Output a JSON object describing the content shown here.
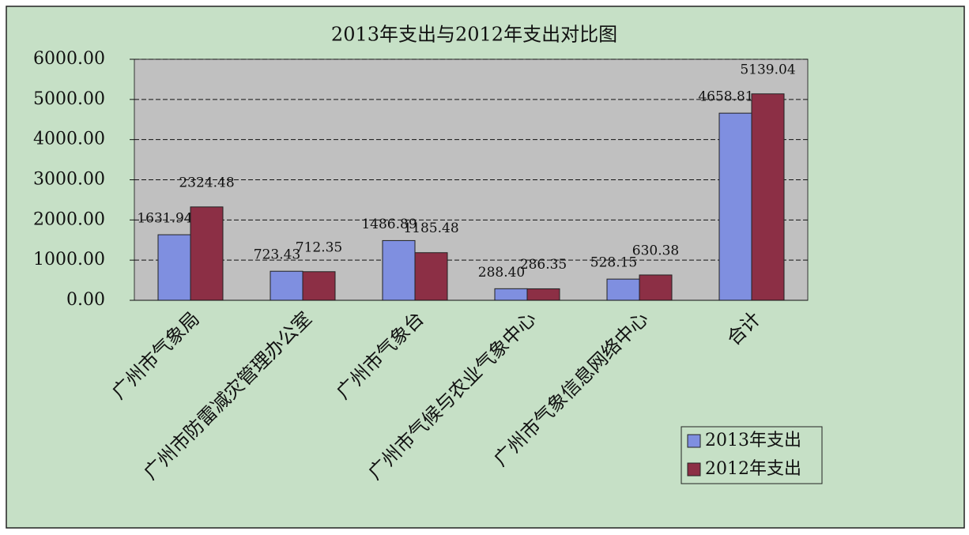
{
  "chart_data": {
    "type": "bar",
    "title": "2013年支出与2012年支出对比图",
    "categories": [
      "广州市气象局",
      "广州市防雷减灾管理办公室",
      "广州市气象台",
      "广州市气候与农业气象中心",
      "广州市气象信息网络中心",
      "合计"
    ],
    "series": [
      {
        "name": "2013年支出",
        "color": "#7f8fe0",
        "values": [
          1631.94,
          723.43,
          1486.89,
          288.4,
          528.15,
          4658.81
        ],
        "value_labels": [
          "1631.94",
          "723.43",
          "1486.89",
          "288.40",
          "528.15",
          "4658.81"
        ]
      },
      {
        "name": "2012年支出",
        "color": "#8c2f45",
        "values": [
          2324.48,
          712.35,
          1185.48,
          286.35,
          630.38,
          5139.04
        ],
        "value_labels": [
          "2324.48",
          "712.35",
          "1185.48",
          "286.35",
          "630.38",
          "5139.04"
        ]
      }
    ],
    "ylim": [
      0,
      6000
    ],
    "yticks": [
      {
        "value": 0,
        "label": "0.00"
      },
      {
        "value": 1000,
        "label": "1000.00"
      },
      {
        "value": 2000,
        "label": "2000.00"
      },
      {
        "value": 3000,
        "label": "3000.00"
      },
      {
        "value": 4000,
        "label": "4000.00"
      },
      {
        "value": 5000,
        "label": "5000.00"
      },
      {
        "value": 6000,
        "label": "6000.00"
      }
    ],
    "grid": true,
    "legend": "bottom-right"
  }
}
